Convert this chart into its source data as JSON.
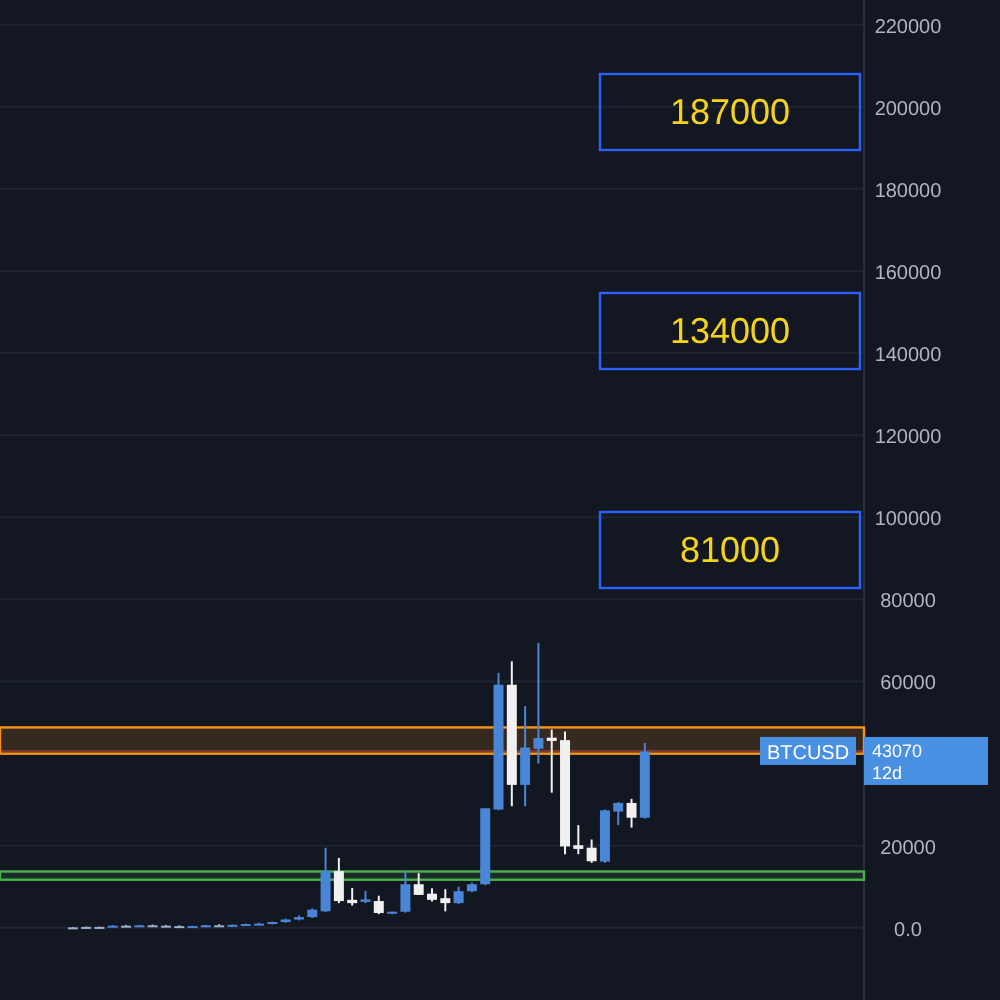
{
  "chart_data": {
    "type": "candlestick",
    "categories": [
      null,
      null,
      null,
      null,
      null,
      null,
      null,
      null,
      null,
      null,
      null,
      null,
      null,
      null,
      null,
      null,
      null,
      null,
      null,
      null,
      null,
      null,
      null,
      null,
      null,
      null,
      null,
      null,
      null,
      null,
      null,
      null,
      null,
      null,
      null,
      null,
      null,
      null,
      null,
      null,
      null,
      null,
      null,
      null,
      null,
      null,
      null,
      null,
      null,
      null,
      null,
      null,
      null,
      null,
      null,
      null,
      null,
      null,
      null,
      null,
      null,
      null,
      null,
      null,
      null
    ],
    "ohlc": [
      null,
      null,
      null,
      null,
      null,
      [
        0,
        200,
        0,
        100
      ],
      [
        100,
        300,
        0,
        200
      ],
      [
        200,
        300,
        0,
        100
      ],
      [
        100,
        600,
        100,
        500
      ],
      [
        500,
        700,
        300,
        400
      ],
      [
        400,
        700,
        300,
        600
      ],
      [
        600,
        800,
        400,
        500
      ],
      [
        500,
        700,
        300,
        400
      ],
      [
        400,
        600,
        200,
        300
      ],
      [
        300,
        500,
        200,
        400
      ],
      [
        400,
        700,
        300,
        600
      ],
      [
        600,
        900,
        400,
        500
      ],
      [
        500,
        800,
        300,
        700
      ],
      [
        700,
        1000,
        500,
        900
      ],
      [
        900,
        1200,
        700,
        1000
      ],
      [
        1000,
        1500,
        800,
        1400
      ],
      [
        1400,
        2200,
        1200,
        2000
      ],
      [
        2000,
        3000,
        1800,
        2600
      ],
      [
        2600,
        4700,
        2400,
        4400
      ],
      [
        4000,
        19500,
        3800,
        13800
      ],
      [
        13800,
        17000,
        6000,
        6500
      ],
      [
        6800,
        9700,
        5400,
        6000
      ],
      [
        6300,
        9000,
        6000,
        6900
      ],
      [
        6500,
        7800,
        3300,
        3600
      ],
      [
        3600,
        3900,
        3300,
        3900
      ],
      [
        3900,
        13700,
        3700,
        10600
      ],
      [
        10600,
        13300,
        8000,
        8000
      ],
      [
        8300,
        9600,
        6400,
        6800
      ],
      [
        7200,
        9400,
        4000,
        6000
      ],
      [
        6000,
        10000,
        5800,
        8900
      ],
      [
        8900,
        11000,
        8700,
        10600
      ],
      [
        10600,
        29100,
        10400,
        29100
      ],
      [
        28800,
        62100,
        28600,
        59200
      ],
      [
        59200,
        64900,
        29600,
        34800
      ],
      [
        34800,
        54000,
        29600,
        43900
      ],
      [
        43600,
        69400,
        40000,
        46200
      ],
      [
        46300,
        48300,
        32900,
        45500
      ],
      [
        45700,
        47800,
        17900,
        19800
      ],
      [
        20100,
        25000,
        17900,
        19200
      ],
      [
        19500,
        21500,
        15800,
        16200
      ],
      [
        16100,
        28800,
        15800,
        28600
      ],
      [
        28300,
        30600,
        25000,
        30400
      ],
      [
        30400,
        31400,
        24400,
        26800
      ],
      [
        26800,
        45000,
        26600,
        42900
      ],
      null,
      null,
      null,
      null,
      null,
      null,
      null,
      null,
      null,
      null,
      null,
      null,
      null,
      null,
      null,
      null
    ],
    "colors": [
      null,
      null,
      null,
      null,
      null,
      "#9ab0d0",
      "#9ab0d0",
      "#9ab0d0",
      "#4a86d8",
      "#9ab0d0",
      "#4a86d8",
      "#9ab0d0",
      "#9ab0d0",
      "#9ab0d0",
      "#4a86d8",
      "#4a86d8",
      "#9ab0d0",
      "#4a86d8",
      "#4a86d8",
      "#4a86d8",
      "#4a86d8",
      "#4a86d8",
      "#4a86d8",
      "#4a86d8",
      "#4a86d8",
      "#f0f0f0",
      "#f0f0f0",
      "#4a86d8",
      "#f0f0f0",
      "#4a86d8",
      "#4a86d8",
      "#f0f0f0",
      "#f0f0f0",
      "#f0f0f0",
      "#4a86d8",
      "#4a86d8",
      "#4a86d8",
      "#4a86d8",
      "#f0f0f0",
      "#4a86d8",
      "#4a86d8",
      "#f0f0f0",
      "#f0f0f0",
      "#f0f0f0",
      "#f0f0f0",
      "#4a86d8",
      "#4a86d8",
      "#f0f0f0",
      "#4a86d8",
      null,
      null,
      null,
      null,
      null,
      null,
      null,
      null,
      null,
      null,
      null,
      null,
      null,
      null,
      null,
      null
    ],
    "ylim": [
      -17600,
      226000
    ],
    "yticks": [
      {
        "value": 0,
        "label": "0.0"
      },
      20000,
      60000,
      80000,
      100000,
      120000,
      140000,
      160000,
      180000,
      200000,
      220000
    ],
    "tick_labels": "y",
    "grid": "y",
    "ref_lines": [
      {
        "axis": "y",
        "value": 43070,
        "label": "BTCUSD",
        "color": "#6b2a33"
      }
    ],
    "bands": [
      {
        "axis": "y",
        "from": 42400,
        "to": 48800,
        "color": "#f7931a"
      },
      {
        "axis": "y",
        "from": 11700,
        "to": 13700,
        "color": "#4caf50"
      }
    ],
    "annotations": [
      "187000",
      "134000",
      "81000",
      "43070",
      "12d"
    ]
  }
}
